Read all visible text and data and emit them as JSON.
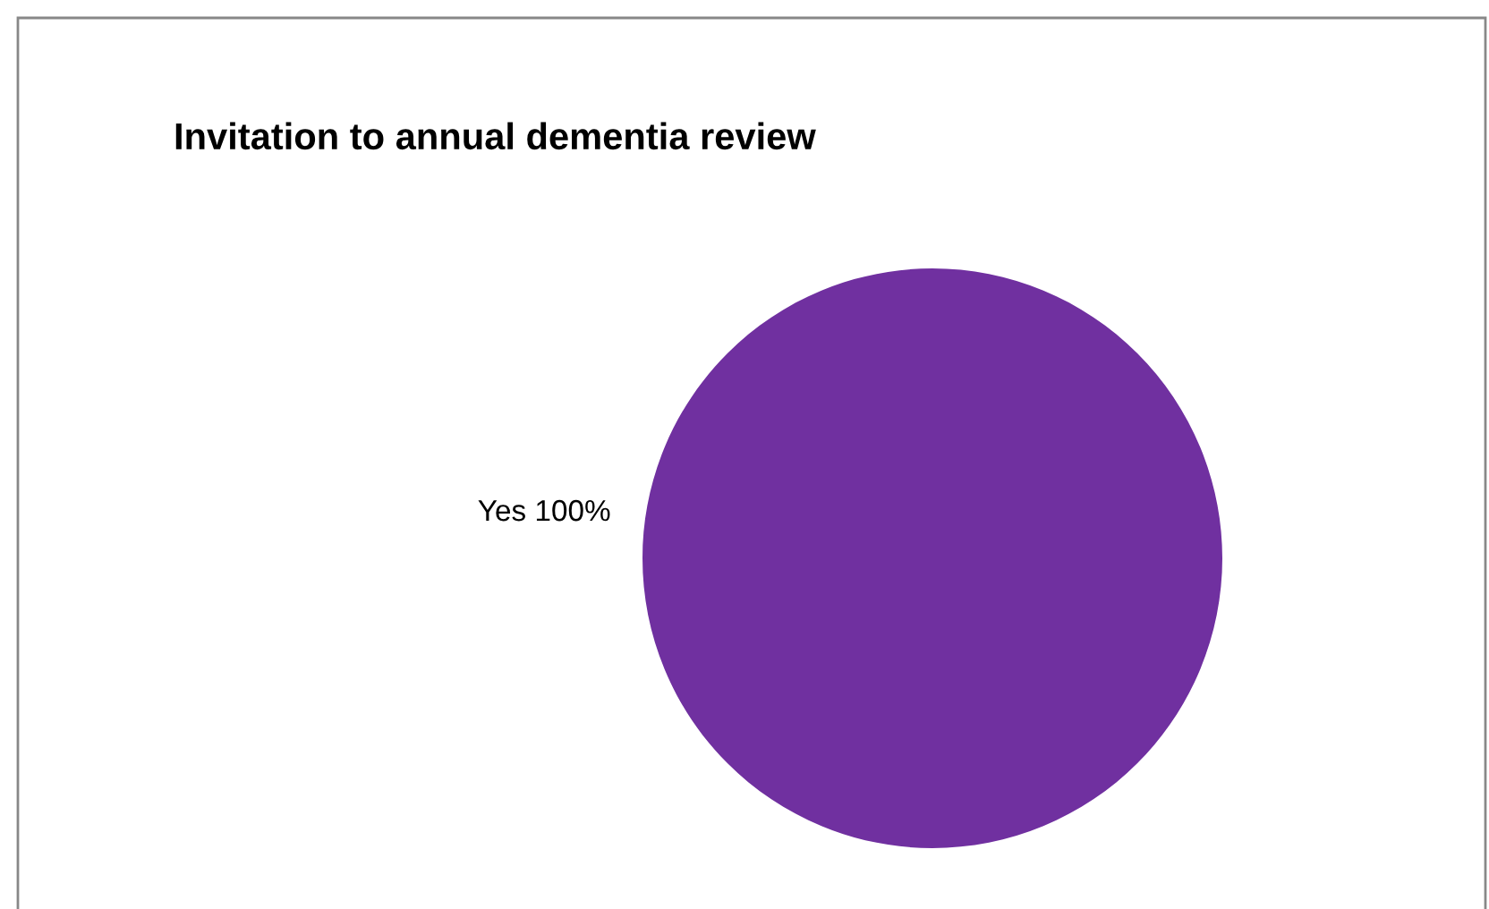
{
  "chart_data": {
    "type": "pie",
    "title": "Invitation to annual dementia review",
    "categories": [
      "Yes"
    ],
    "values": [
      100
    ],
    "colors": [
      "#7030a0"
    ],
    "value_labels": [
      "100%"
    ],
    "legend": false
  }
}
